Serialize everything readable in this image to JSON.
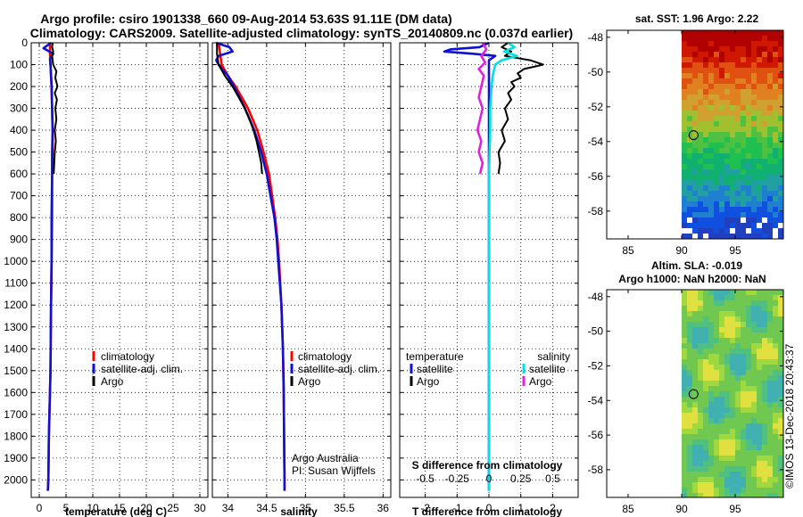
{
  "header": {
    "line1": "Argo profile: csiro 1901338_660 09-Aug-2014 53.63S 91.11E (DM data)",
    "line2": "Climatology: CARS2009. Satellite-adjusted climatology: synTS_20140809.nc (0.037d earlier)"
  },
  "colors": {
    "climatology": "#ff0000",
    "satellite": "#1010d0",
    "argo": "#000000",
    "sal_sat": "#00e0e0",
    "sal_argo": "#e020e0"
  },
  "chart_data": [
    {
      "type": "line",
      "panel": "temperature",
      "xlabel": "temperature (deg C)",
      "ylabel": "",
      "xlim": [
        -1.5,
        31.5
      ],
      "ylim": [
        2080,
        0
      ],
      "xticks": [
        "0",
        "5",
        "10",
        "15",
        "20",
        "25",
        "30"
      ],
      "yticks": [
        "0",
        "100",
        "200",
        "300",
        "400",
        "500",
        "600",
        "700",
        "800",
        "900",
        "1000",
        "1100",
        "1200",
        "1300",
        "1400",
        "1500",
        "1600",
        "1700",
        "1800",
        "1900",
        "2000"
      ],
      "grid": true,
      "legend": [
        "climatology",
        "satellite-adj. clim.",
        "Argo"
      ],
      "series": [
        {
          "name": "climatology",
          "depth": [
            0,
            50,
            100,
            150,
            200,
            300,
            400,
            500,
            600,
            800,
            1000,
            1200,
            1500,
            1800,
            2000,
            2050
          ],
          "values": [
            2.0,
            2.0,
            2.1,
            2.2,
            2.3,
            2.4,
            2.5,
            2.5,
            2.4,
            2.4,
            2.3,
            2.2,
            2.1,
            1.8,
            1.7,
            1.6
          ]
        },
        {
          "name": "satellite-adj. clim.",
          "depth": [
            0,
            25,
            50,
            75,
            100,
            150,
            200,
            300,
            400,
            500,
            600,
            800,
            1000,
            1200,
            1500,
            1800,
            2000,
            2050
          ],
          "values": [
            2.2,
            0.8,
            2.6,
            2.0,
            2.1,
            2.2,
            2.3,
            2.4,
            2.5,
            2.4,
            2.4,
            2.3,
            2.3,
            2.2,
            2.1,
            1.8,
            1.7,
            1.6
          ]
        },
        {
          "name": "Argo",
          "depth": [
            0,
            20,
            40,
            60,
            80,
            100,
            130,
            160,
            200,
            230,
            260,
            300,
            350,
            400,
            450,
            500,
            550,
            600
          ],
          "values": [
            2.5,
            2.4,
            2.6,
            2.4,
            2.5,
            2.6,
            3.2,
            3.0,
            3.4,
            2.9,
            3.3,
            3.0,
            3.2,
            2.9,
            3.1,
            2.9,
            2.8,
            2.7
          ]
        }
      ]
    },
    {
      "type": "line",
      "panel": "salinity",
      "xlabel": "salinity",
      "xlim": [
        33.8,
        36.1
      ],
      "ylim": [
        2080,
        0
      ],
      "xticks": [
        "34",
        "34.5",
        "35",
        "35.5",
        "36"
      ],
      "grid": true,
      "legend": [
        "climatology",
        "satellite-adj. clim.",
        "Argo"
      ],
      "annotation": [
        "Argo Australia",
        "PI: Susan Wijffels"
      ],
      "series": [
        {
          "name": "climatology",
          "depth": [
            0,
            50,
            100,
            150,
            200,
            300,
            400,
            500,
            600,
            700,
            800,
            900,
            1000,
            1200,
            1400,
            1600,
            1800,
            2000,
            2050
          ],
          "values": [
            33.88,
            33.9,
            33.92,
            34.0,
            34.1,
            34.26,
            34.38,
            34.46,
            34.53,
            34.57,
            34.61,
            34.64,
            34.66,
            34.69,
            34.71,
            34.72,
            34.725,
            34.73,
            34.73
          ]
        },
        {
          "name": "satellite-adj. clim.",
          "depth": [
            0,
            20,
            40,
            60,
            80,
            100,
            150,
            200,
            300,
            400,
            500,
            600,
            700,
            800,
            900,
            1000,
            1200,
            1400,
            1600,
            1800,
            2000,
            2050
          ],
          "values": [
            33.85,
            34.02,
            34.06,
            33.88,
            33.85,
            33.88,
            34.0,
            34.08,
            34.22,
            34.34,
            34.43,
            34.5,
            34.55,
            34.6,
            34.63,
            34.65,
            34.69,
            34.71,
            34.72,
            34.725,
            34.73,
            34.73
          ]
        },
        {
          "name": "Argo",
          "depth": [
            0,
            50,
            100,
            150,
            200,
            250,
            300,
            350,
            400,
            450,
            500,
            550,
            600
          ],
          "values": [
            33.86,
            33.86,
            33.88,
            33.96,
            34.06,
            34.14,
            34.22,
            34.28,
            34.33,
            34.37,
            34.4,
            34.43,
            34.44
          ]
        }
      ]
    },
    {
      "type": "line",
      "panel": "difference",
      "xlabel": "T difference from climatology",
      "xlabel2": "S difference from climatology",
      "xlim": [
        -2.8,
        2.8
      ],
      "x2lim": [
        -0.7,
        0.7
      ],
      "ylim": [
        2080,
        0
      ],
      "xticks": [
        "-2",
        "-1",
        "0",
        "1",
        "2"
      ],
      "x2ticks": [
        "-0.5",
        "-0.25",
        "0",
        "0.25",
        "0.5"
      ],
      "grid": true,
      "legend_t_title": "temperature",
      "legend_s_title": "salinity",
      "legend_t": [
        "satellite",
        "Argo"
      ],
      "legend_s": [
        "satellite",
        "Argo"
      ],
      "series": [
        {
          "name": "T satellite",
          "axis": "T",
          "depth": [
            0,
            20,
            30,
            40,
            50,
            60,
            70,
            80,
            100,
            150,
            200,
            300,
            400,
            500,
            700,
            900,
            1200,
            1500,
            1800,
            2000,
            2050
          ],
          "values": [
            0,
            -0.3,
            -1.2,
            -1.4,
            -0.5,
            0.2,
            0.1,
            0,
            0,
            0,
            0,
            0,
            0,
            0,
            0,
            0,
            0,
            0,
            0,
            0,
            0
          ]
        },
        {
          "name": "T Argo",
          "axis": "T",
          "depth": [
            0,
            20,
            40,
            60,
            70,
            80,
            90,
            100,
            110,
            120,
            140,
            160,
            180,
            200,
            230,
            260,
            300,
            350,
            400,
            450,
            500,
            550,
            600
          ],
          "values": [
            0.6,
            0.4,
            0.7,
            0.5,
            0.9,
            1.3,
            1.5,
            1.7,
            1.4,
            1.1,
            0.9,
            1.0,
            0.7,
            0.8,
            0.6,
            0.7,
            0.5,
            0.6,
            0.4,
            0.5,
            0.3,
            0.35,
            0.3
          ]
        },
        {
          "name": "S satellite",
          "axis": "S",
          "depth": [
            0,
            20,
            40,
            60,
            80,
            100,
            150,
            200,
            300,
            400,
            600,
            800,
            1000,
            1200,
            1500,
            1800,
            2000,
            2050
          ],
          "values": [
            0.15,
            0.2,
            0.12,
            0.22,
            0.1,
            0.05,
            0.03,
            0.02,
            0.01,
            0.01,
            0,
            0,
            0,
            0,
            0,
            0,
            0,
            0
          ]
        },
        {
          "name": "S Argo",
          "axis": "S",
          "depth": [
            0,
            30,
            60,
            90,
            120,
            150,
            200,
            250,
            300,
            350,
            400,
            450,
            500,
            550,
            600
          ],
          "values": [
            -0.05,
            -0.02,
            -0.06,
            -0.03,
            -0.08,
            -0.04,
            -0.06,
            -0.08,
            -0.05,
            -0.07,
            -0.09,
            -0.06,
            -0.08,
            -0.05,
            -0.07
          ]
        }
      ]
    },
    {
      "type": "heatmap",
      "panel": "sst_map",
      "title": "sat. SST: 1.96 Argo: 2.22",
      "xlim": [
        83,
        99.5
      ],
      "ylim": [
        -59.6,
        -47.6
      ],
      "xticks": [
        "85",
        "90",
        "95"
      ],
      "yticks": [
        "-48",
        "-50",
        "-52",
        "-54",
        "-56",
        "-58"
      ],
      "marker": {
        "lon": 91.11,
        "lat": -53.63
      }
    },
    {
      "type": "heatmap",
      "panel": "sla_map",
      "title": "Altim. SLA: -0.019",
      "subtitle": "Argo h1000: NaN h2000: NaN",
      "xlim": [
        83,
        99.5
      ],
      "ylim": [
        -59.6,
        -47.6
      ],
      "xticks": [
        "85",
        "90",
        "95"
      ],
      "yticks": [
        "-48",
        "-50",
        "-52",
        "-54",
        "-56",
        "-58"
      ],
      "marker": {
        "lon": 91.11,
        "lat": -53.63
      }
    }
  ],
  "footer": {
    "stamp": "©IMOS 13-Dec-2018 20:43:37"
  }
}
